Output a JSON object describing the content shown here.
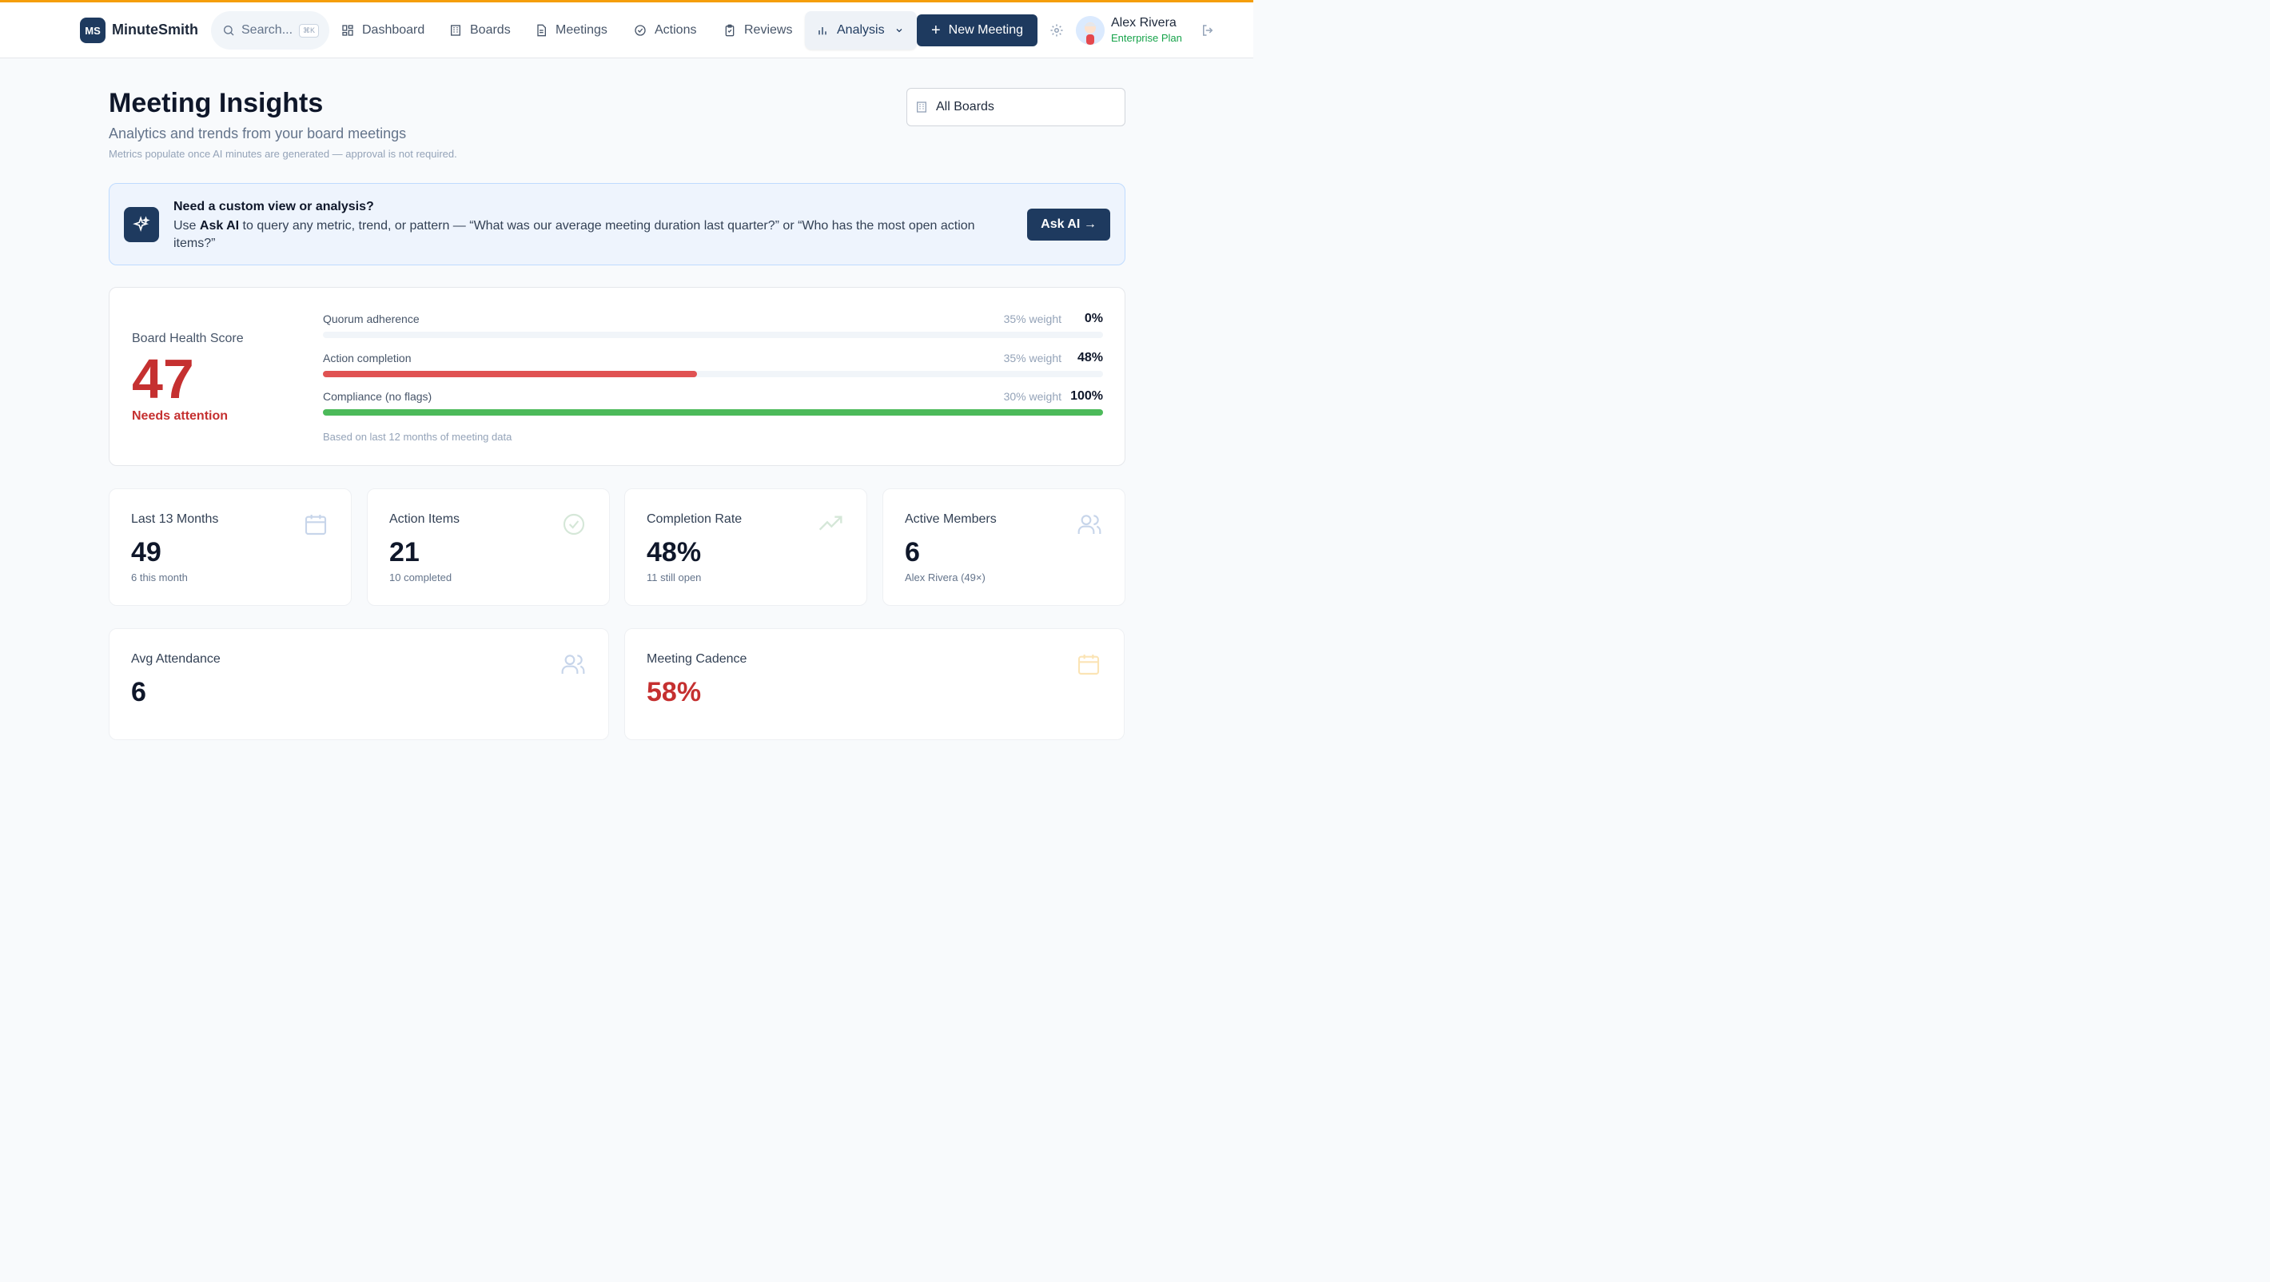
{
  "app": {
    "logo_initials": "MS",
    "name": "MinuteSmith"
  },
  "search": {
    "placeholder": "Search...",
    "shortcut": "⌘K"
  },
  "nav": {
    "dashboard": "Dashboard",
    "boards": "Boards",
    "meetings": "Meetings",
    "actions": "Actions",
    "reviews": "Reviews",
    "analysis": "Analysis",
    "new_meeting": "New Meeting"
  },
  "user": {
    "name": "Alex Rivera",
    "plan": "Enterprise Plan"
  },
  "page": {
    "title": "Meeting Insights",
    "subtitle": "Analytics and trends from your board meetings",
    "note": "Metrics populate once AI minutes are generated — approval is not required.",
    "board_filter": "All Boards"
  },
  "ai_banner": {
    "title": "Need a custom view or analysis?",
    "body_prefix": "Use ",
    "body_bold": "Ask AI",
    "body_rest": " to query any metric, trend, or pattern — “What was our average meeting duration last quarter?” or “Who has the most open action items?”",
    "button": "Ask AI →"
  },
  "health": {
    "label": "Board Health Score",
    "score": "47",
    "status": "Needs attention",
    "metrics": [
      {
        "label": "Quorum adherence",
        "weight": "35% weight",
        "value": "0%",
        "fraction": 0.0,
        "color": "#e05252"
      },
      {
        "label": "Action completion",
        "weight": "35% weight",
        "value": "48%",
        "fraction": 0.48,
        "color": "#e05252"
      },
      {
        "label": "Compliance (no flags)",
        "weight": "30% weight",
        "value": "100%",
        "fraction": 1.0,
        "color": "#4cba5a"
      }
    ],
    "footnote": "Based on last 12 months of meeting data"
  },
  "stats": [
    {
      "label": "Last 13 Months",
      "value": "49",
      "sub": "6 this month",
      "icon": "calendar-icon"
    },
    {
      "label": "Action Items",
      "value": "21",
      "sub": "10 completed",
      "icon": "check-circle-icon"
    },
    {
      "label": "Completion Rate",
      "value": "48%",
      "sub": "11 still open",
      "icon": "trending-up-icon"
    },
    {
      "label": "Active Members",
      "value": "6",
      "sub": "Alex Rivera (49×)",
      "icon": "users-icon"
    }
  ],
  "wide_stats": [
    {
      "label": "Avg Attendance",
      "value": "6",
      "icon": "users-icon"
    },
    {
      "label": "Meeting Cadence",
      "value": "58%",
      "icon": "calendar-icon",
      "value_color": "#c53030"
    }
  ]
}
